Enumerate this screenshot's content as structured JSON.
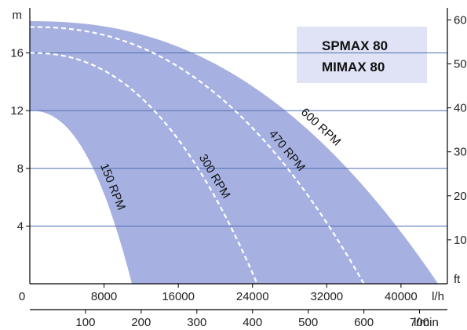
{
  "chart_data": {
    "type": "area",
    "title": [
      "SPMAX 80",
      "MIMAX 80"
    ],
    "colors": {
      "band": "#a6b1e1",
      "label_box": "#dfe3f5",
      "gridline": "#4f6db0",
      "dashed": "#ffffff",
      "axis": "#000000"
    },
    "grid": true,
    "y_left": {
      "label": "m",
      "ticks": [
        "4",
        "8",
        "12",
        "16"
      ],
      "tick_values": [
        4,
        8,
        12,
        16
      ],
      "range": [
        0,
        18.8
      ]
    },
    "y_right": {
      "label": "ft",
      "ticks": [
        "10",
        "20",
        "30",
        "40",
        "50",
        "60"
      ],
      "tick_values": [
        10,
        20,
        30,
        40,
        50,
        60
      ]
    },
    "x_lh": {
      "label": "l/h",
      "ticks": [
        "0",
        "8000",
        "16000",
        "24000",
        "32000",
        "40000"
      ],
      "tick_values": [
        0,
        8000,
        16000,
        24000,
        32000,
        40000
      ],
      "range": [
        0,
        45000
      ]
    },
    "x_lmin": {
      "label": "l/min",
      "ticks": [
        "100",
        "200",
        "300",
        "400",
        "500",
        "600",
        "700"
      ],
      "tick_values": [
        100,
        200,
        300,
        400,
        500,
        600,
        700
      ]
    },
    "series": [
      {
        "name": "600 RPM",
        "shutoff_head_m": 18.2,
        "max_flow_lh": 44000,
        "style": "boundary"
      },
      {
        "name": "470 RPM",
        "shutoff_head_m": 17.8,
        "max_flow_lh": 36000,
        "style": "dashed"
      },
      {
        "name": "300 RPM",
        "shutoff_head_m": 16.0,
        "max_flow_lh": 24500,
        "style": "dashed"
      },
      {
        "name": "150 RPM",
        "shutoff_head_m": 12.0,
        "max_flow_lh": 11000,
        "style": "boundary"
      }
    ]
  }
}
